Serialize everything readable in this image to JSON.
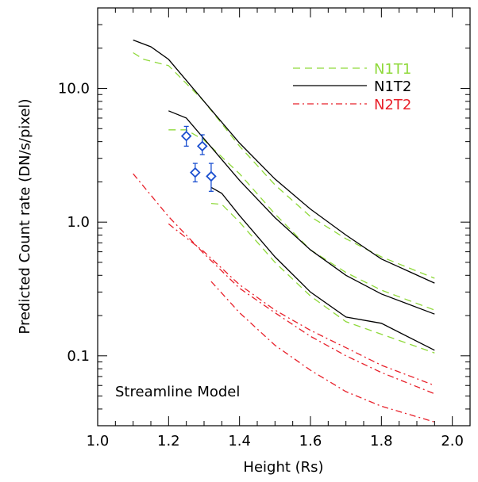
{
  "chart_data": {
    "type": "line",
    "title": "",
    "annotation": "Streamline Model",
    "xlabel": "Height (Rs)",
    "ylabel": "Predicted Count rate (DN/s/pixel)",
    "xlim": [
      1.0,
      2.05
    ],
    "ylim": [
      0.03,
      40
    ],
    "yscale": "log",
    "grid": false,
    "legend_position": "top-right",
    "x_ticks": [
      {
        "value": 1.0,
        "label": "1.0"
      },
      {
        "value": 1.2,
        "label": "1.2"
      },
      {
        "value": 1.4,
        "label": "1.4"
      },
      {
        "value": 1.6,
        "label": "1.6"
      },
      {
        "value": 1.8,
        "label": "1.8"
      },
      {
        "value": 2.0,
        "label": "2.0"
      }
    ],
    "y_ticks": [
      {
        "value": 0.1,
        "label": "0.1"
      },
      {
        "value": 1.0,
        "label": "1.0"
      },
      {
        "value": 10.0,
        "label": "10.0"
      }
    ],
    "legend": [
      {
        "name": "N1T1",
        "color": "#8fd93a",
        "style": "dashed"
      },
      {
        "name": "N1T2",
        "color": "#000000",
        "style": "solid"
      },
      {
        "name": "N2T2",
        "color": "#e8202a",
        "style": "dashdot"
      }
    ],
    "series": [
      {
        "name": "N1T1",
        "color": "#8fd93a",
        "style": "dashed",
        "x": [
          1.1,
          1.13,
          1.2,
          1.3,
          1.4,
          1.5,
          1.6,
          1.7,
          1.8,
          1.95
        ],
        "y": [
          18.5,
          16.5,
          14.8,
          8.0,
          3.7,
          1.9,
          1.1,
          0.75,
          0.55,
          0.38
        ]
      },
      {
        "name": "N1T1",
        "color": "#8fd93a",
        "style": "dashed",
        "x": [
          1.2,
          1.25,
          1.3,
          1.4,
          1.5,
          1.6,
          1.7,
          1.8,
          1.95
        ],
        "y": [
          4.9,
          4.9,
          4.1,
          2.3,
          1.15,
          0.62,
          0.42,
          0.31,
          0.22
        ]
      },
      {
        "name": "N1T1",
        "color": "#8fd93a",
        "style": "dashed",
        "x": [
          1.32,
          1.35,
          1.4,
          1.5,
          1.6,
          1.7,
          1.8,
          1.95
        ],
        "y": [
          1.38,
          1.36,
          1.0,
          0.5,
          0.28,
          0.18,
          0.145,
          0.105
        ]
      },
      {
        "name": "N1T2",
        "color": "#000000",
        "style": "solid",
        "x": [
          1.1,
          1.15,
          1.2,
          1.3,
          1.4,
          1.5,
          1.6,
          1.7,
          1.8,
          1.95
        ],
        "y": [
          23.0,
          20.5,
          16.5,
          8.0,
          3.9,
          2.1,
          1.25,
          0.8,
          0.53,
          0.35
        ]
      },
      {
        "name": "N1T2",
        "color": "#000000",
        "style": "solid",
        "x": [
          1.2,
          1.25,
          1.3,
          1.4,
          1.5,
          1.6,
          1.7,
          1.8,
          1.95
        ],
        "y": [
          6.8,
          6.0,
          4.2,
          2.05,
          1.08,
          0.62,
          0.4,
          0.29,
          0.205
        ]
      },
      {
        "name": "N1T2",
        "color": "#000000",
        "style": "solid",
        "x": [
          1.32,
          1.35,
          1.4,
          1.5,
          1.6,
          1.7,
          1.8,
          1.95
        ],
        "y": [
          1.82,
          1.64,
          1.12,
          0.55,
          0.3,
          0.195,
          0.175,
          0.11
        ]
      },
      {
        "name": "N2T2",
        "color": "#e8202a",
        "style": "dashdot",
        "x": [
          1.1,
          1.2,
          1.3,
          1.4,
          1.5,
          1.6,
          1.7,
          1.8,
          1.95
        ],
        "y": [
          2.3,
          1.1,
          0.58,
          0.32,
          0.21,
          0.14,
          0.1,
          0.075,
          0.052
        ]
      },
      {
        "name": "N2T2",
        "color": "#e8202a",
        "style": "dashdot",
        "x": [
          1.2,
          1.3,
          1.4,
          1.5,
          1.6,
          1.7,
          1.8,
          1.95
        ],
        "y": [
          0.97,
          0.6,
          0.34,
          0.22,
          0.155,
          0.115,
          0.085,
          0.06
        ]
      },
      {
        "name": "N2T2",
        "color": "#e8202a",
        "style": "dashdot",
        "x": [
          1.32,
          1.4,
          1.5,
          1.6,
          1.7,
          1.8,
          1.95
        ],
        "y": [
          0.36,
          0.21,
          0.12,
          0.078,
          0.054,
          0.042,
          0.032
        ]
      }
    ],
    "observations": {
      "color": "#1a4fd0",
      "marker": "diamond",
      "points": [
        {
          "x": 1.25,
          "y": 4.4,
          "yerr_low": 3.7,
          "yerr_high": 5.2
        },
        {
          "x": 1.295,
          "y": 3.7,
          "yerr_low": 3.2,
          "yerr_high": 4.5
        },
        {
          "x": 1.275,
          "y": 2.35,
          "yerr_low": 2.0,
          "yerr_high": 2.75
        },
        {
          "x": 1.32,
          "y": 2.2,
          "yerr_low": 1.7,
          "yerr_high": 2.75
        }
      ]
    }
  }
}
